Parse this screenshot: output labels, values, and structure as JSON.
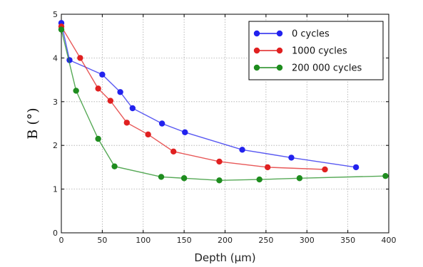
{
  "chart_data": {
    "type": "line",
    "xlabel": "Depth (μm)",
    "ylabel": "B (°)",
    "xlim": [
      0,
      400
    ],
    "ylim": [
      0,
      5
    ],
    "xticks": [
      0,
      50,
      100,
      150,
      200,
      250,
      300,
      350,
      400
    ],
    "yticks": [
      0,
      1,
      2,
      3,
      4,
      5
    ],
    "grid": true,
    "legend_position": "top-right",
    "series": [
      {
        "name": "0 cycles",
        "color": "#2222ee",
        "x": [
          0,
          10,
          50,
          72,
          87,
          123,
          151,
          221,
          281,
          360
        ],
        "y": [
          4.8,
          3.95,
          3.62,
          3.22,
          2.85,
          2.5,
          2.3,
          1.9,
          1.72,
          1.5
        ]
      },
      {
        "name": "1000 cycles",
        "color": "#e02020",
        "x": [
          0,
          23,
          45,
          60,
          80,
          106,
          137,
          193,
          252,
          322
        ],
        "y": [
          4.72,
          4.0,
          3.3,
          3.02,
          2.52,
          2.25,
          1.86,
          1.63,
          1.5,
          1.45
        ]
      },
      {
        "name": "200 000 cycles",
        "color": "#1e8c1e",
        "x": [
          0,
          18,
          45,
          65,
          122,
          150,
          193,
          242,
          291,
          396
        ],
        "y": [
          4.65,
          3.25,
          2.15,
          1.52,
          1.28,
          1.25,
          1.2,
          1.22,
          1.25,
          1.3
        ]
      }
    ]
  }
}
